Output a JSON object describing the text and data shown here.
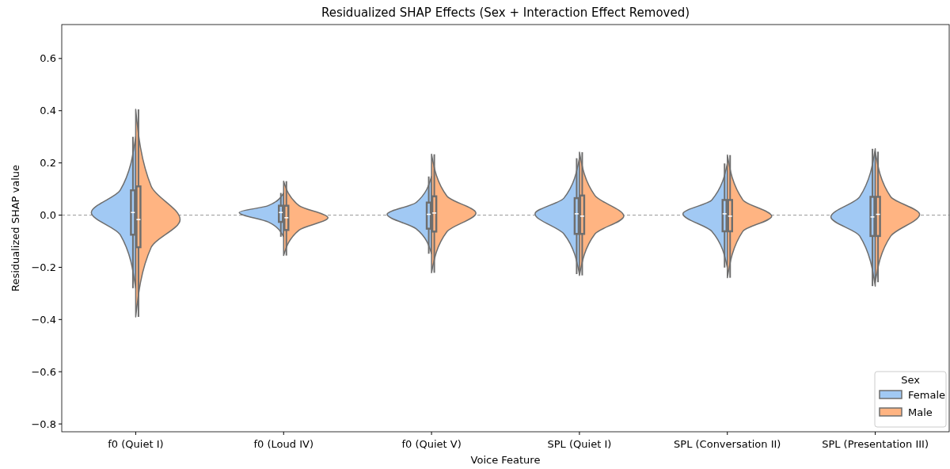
{
  "chart_data": {
    "type": "box",
    "title": "Residualized SHAP Effects (Sex + Interaction Effect Removed)",
    "xlabel": "Voice Feature",
    "ylabel": "Residualized SHAP value",
    "legend_title": "Sex",
    "legend": "bottom right",
    "grid": false,
    "categories": [
      "f0 (Quiet I)",
      "f0 (Loud IV)",
      "f0 (Quiet V)",
      "SPL (Quiet I)",
      "SPL (Conversation II)",
      "SPL (Presentation III)"
    ],
    "ylim": [
      -0.83,
      0.73
    ],
    "yticks": [
      {
        "value": -0.8,
        "label": "−0.8"
      },
      {
        "value": -0.6,
        "label": "−0.6"
      },
      {
        "value": -0.4,
        "label": "−0.4"
      },
      {
        "value": -0.2,
        "label": "−0.2"
      },
      {
        "value": 0,
        "label": "0.0"
      },
      0.2,
      0.4,
      0.6
    ],
    "ref_lines": [
      {
        "axis": "y",
        "value": 0,
        "color": "#808080",
        "line_style": "dashed"
      }
    ],
    "series": [
      {
        "name": "Female",
        "color": "#a1c9f4",
        "boxes": [
          {
            "low": -0.28,
            "q1": -0.075,
            "median": 0.01,
            "q3": 0.095,
            "high": 0.3
          },
          {
            "low": -0.083,
            "q1": -0.026,
            "median": 0.01,
            "q3": 0.036,
            "high": 0.085
          },
          {
            "low": -0.148,
            "q1": -0.052,
            "median": 0.003,
            "q3": 0.048,
            "high": 0.148
          },
          {
            "low": -0.226,
            "q1": -0.072,
            "median": 0.005,
            "q3": 0.065,
            "high": 0.218
          },
          {
            "low": -0.201,
            "q1": -0.062,
            "median": 0.005,
            "q3": 0.058,
            "high": 0.198
          },
          {
            "low": -0.272,
            "q1": -0.08,
            "median": -0.007,
            "q3": 0.07,
            "high": 0.254
          }
        ]
      },
      {
        "name": "Male",
        "color": "#ffb482",
        "boxes": [
          {
            "low": -0.39,
            "q1": -0.123,
            "median": -0.017,
            "q3": 0.11,
            "high": 0.405
          },
          {
            "low": -0.155,
            "q1": -0.057,
            "median": -0.01,
            "q3": 0.036,
            "high": 0.13
          },
          {
            "low": -0.221,
            "q1": -0.063,
            "median": 0.008,
            "q3": 0.072,
            "high": 0.233
          },
          {
            "low": -0.231,
            "q1": -0.072,
            "median": -0.004,
            "q3": 0.075,
            "high": 0.241
          },
          {
            "low": -0.24,
            "q1": -0.062,
            "median": -0.004,
            "q3": 0.058,
            "high": 0.23
          },
          {
            "low": -0.257,
            "q1": -0.08,
            "median": 0.003,
            "q3": 0.07,
            "high": 0.243
          }
        ]
      }
    ]
  }
}
